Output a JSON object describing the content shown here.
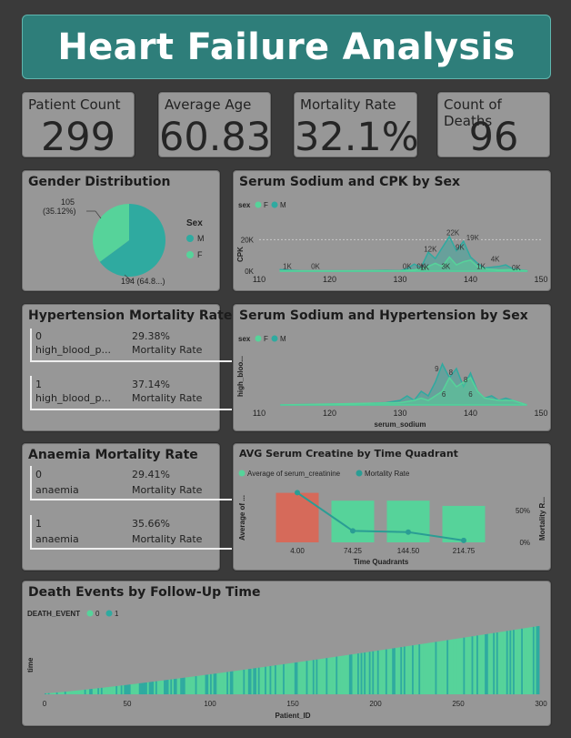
{
  "title": "Heart Failure Analysis",
  "kpis": {
    "patient_count": {
      "label": "Patient Count",
      "value": "299"
    },
    "average_age": {
      "label": "Average Age",
      "value": "60.83"
    },
    "mortality_rate": {
      "label": "Mortality Rate",
      "value": "32.1%"
    },
    "count_of_deaths": {
      "label": "Count of Deaths",
      "value": "96"
    }
  },
  "gender": {
    "title": "Gender Distribution",
    "legend_title": "Sex",
    "legend": [
      "M",
      "F"
    ],
    "label_f_count": "105",
    "label_f_pct": "(35.12%)",
    "label_m": "194 (64.8...)"
  },
  "hypertension": {
    "title": "Hypertension Mortality Rate",
    "rows": [
      {
        "value": "0",
        "name": "high_blood_p...",
        "rate": "29.38%",
        "rate_label": "Mortality Rate"
      },
      {
        "value": "1",
        "name": "high_blood_p...",
        "rate": "37.14%",
        "rate_label": "Mortality Rate"
      }
    ]
  },
  "anaemia": {
    "title": "Anaemia Mortality Rate",
    "rows": [
      {
        "value": "0",
        "name": "anaemia",
        "rate": "29.41%",
        "rate_label": "Mortality Rate"
      },
      {
        "value": "1",
        "name": "anaemia",
        "rate": "35.66%",
        "rate_label": "Mortality Rate"
      }
    ]
  },
  "colors": {
    "m": "#2faaa0",
    "f": "#56d39a",
    "red": "#d66a5a",
    "line": "#2a9d94"
  },
  "chart_data": [
    {
      "id": "gender_pie",
      "type": "pie",
      "title": "Gender Distribution",
      "categories": [
        "M",
        "F"
      ],
      "values": [
        194,
        105
      ],
      "percentages": [
        64.88,
        35.12
      ]
    },
    {
      "id": "sodium_cpk",
      "type": "area",
      "title": "Serum Sodium and CPK by Sex",
      "xlabel": "",
      "ylabel": "CPK",
      "legend_title": "sex",
      "legend": [
        "F",
        "M"
      ],
      "xlim": [
        110,
        150
      ],
      "ylim": [
        0,
        30000
      ],
      "xticks": [
        "110",
        "120",
        "130",
        "140",
        "150"
      ],
      "yticks": [
        "0K",
        "20K"
      ],
      "series": [
        {
          "name": "M",
          "x": [
            113,
            116,
            120,
            125,
            128,
            130,
            131,
            132,
            133,
            134,
            135,
            136,
            137,
            138,
            139,
            140,
            141,
            142,
            144,
            145,
            146,
            148
          ],
          "y": [
            1000,
            200,
            200,
            300,
            500,
            300,
            1500,
            4500,
            2500,
            12000,
            8000,
            15000,
            22000,
            13000,
            19000,
            9000,
            5000,
            2000,
            3000,
            4000,
            1500,
            300
          ]
        },
        {
          "name": "F",
          "x": [
            113,
            120,
            126,
            130,
            132,
            133,
            134,
            135,
            136,
            137,
            138,
            139,
            140,
            141,
            142,
            144,
            146,
            148
          ],
          "y": [
            200,
            200,
            300,
            200,
            800,
            1500,
            3000,
            5000,
            3000,
            9000,
            4000,
            6000,
            7000,
            3000,
            1500,
            800,
            1000,
            200
          ]
        }
      ],
      "labels": [
        "1K",
        "0K",
        "0K",
        "0K",
        "12K",
        "22K",
        "19K",
        "9K",
        "4K",
        "1K",
        "3K",
        "1K",
        "0K"
      ]
    },
    {
      "id": "sodium_htn",
      "type": "area",
      "title": "Serum Sodium and Hypertension by Sex",
      "xlabel": "serum_sodium",
      "ylabel": "high_bloo...",
      "legend_title": "sex",
      "legend": [
        "F",
        "M"
      ],
      "xlim": [
        110,
        150
      ],
      "ylim": [
        0,
        10
      ],
      "xticks": [
        "110",
        "120",
        "130",
        "140",
        "150"
      ],
      "series": [
        {
          "name": "M",
          "x": [
            113,
            125,
            128,
            130,
            131,
            132,
            133,
            134,
            135,
            136,
            137,
            138,
            139,
            140,
            141,
            142,
            143,
            144,
            145,
            146,
            148
          ],
          "y": [
            0,
            0.3,
            0.5,
            1,
            2,
            1,
            3,
            2,
            5,
            9,
            6,
            8,
            4,
            7,
            3,
            1.5,
            2,
            1,
            1.5,
            1,
            0
          ]
        },
        {
          "name": "F",
          "x": [
            113,
            130,
            132,
            133,
            134,
            135,
            136,
            137,
            138,
            139,
            140,
            141,
            142,
            144,
            146,
            148
          ],
          "y": [
            0,
            0.5,
            1,
            1.5,
            1,
            2,
            3,
            6,
            4,
            5,
            6,
            3,
            1.5,
            1,
            1,
            0
          ]
        }
      ],
      "labels": [
        "9",
        "8",
        "8",
        "6",
        "6"
      ]
    },
    {
      "id": "creatinine_quadrant",
      "type": "bar",
      "title": "AVG Serum Creatine by Time Quadrant",
      "xlabel": "Time Quadrants",
      "ylabel": "Average of ...",
      "y2label": "Mortality R...",
      "legend": [
        "Average of serum_creatinine",
        "Mortality Rate"
      ],
      "categories": [
        "4.00",
        "74.25",
        "144.50",
        "214.75"
      ],
      "series": [
        {
          "name": "Average of serum_creatinine",
          "values": [
            1.9,
            1.6,
            1.6,
            1.4
          ]
        },
        {
          "name": "Mortality Rate",
          "values": [
            0.78,
            0.18,
            0.16,
            0.03
          ]
        }
      ],
      "y2ticks": [
        "50%",
        "0%"
      ],
      "y2lim": [
        0,
        0.9
      ]
    },
    {
      "id": "death_followup",
      "type": "bar",
      "title": "Death Events by Follow-Up Time",
      "xlabel": "Patient_ID",
      "ylabel": "time",
      "legend_title": "DEATH_EVENT",
      "legend": [
        "0",
        "1"
      ],
      "xticks": [
        "0",
        "50",
        "100",
        "150",
        "200",
        "250",
        "300"
      ],
      "xlim": [
        0,
        300
      ],
      "ylim": [
        0,
        300
      ],
      "n": 299,
      "time_range": [
        4,
        285
      ]
    }
  ]
}
